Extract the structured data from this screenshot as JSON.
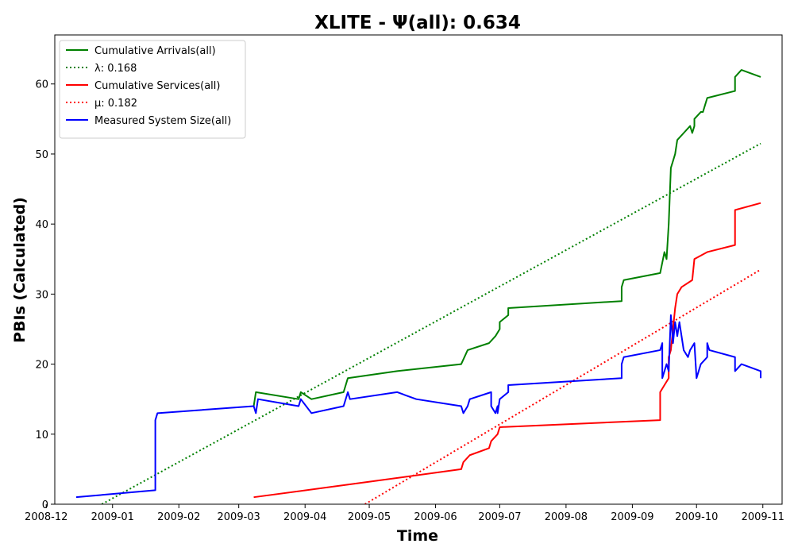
{
  "chart_data": {
    "type": "line",
    "title": "XLITE -  Ψ(all): 0.634",
    "xlabel": "Time",
    "ylabel": "PBIs (Calculated)",
    "xlim": [
      "2008-12-05",
      "2009-11-10"
    ],
    "ylim": [
      0,
      67
    ],
    "x_ticks": [
      {
        "date": "2008-12-01",
        "label": "2008-12"
      },
      {
        "date": "2009-01-01",
        "label": "2009-01"
      },
      {
        "date": "2009-02-01",
        "label": "2009-02"
      },
      {
        "date": "2009-03-01",
        "label": "2009-03"
      },
      {
        "date": "2009-04-01",
        "label": "2009-04"
      },
      {
        "date": "2009-05-01",
        "label": "2009-05"
      },
      {
        "date": "2009-06-01",
        "label": "2009-06"
      },
      {
        "date": "2009-07-01",
        "label": "2009-07"
      },
      {
        "date": "2009-08-01",
        "label": "2009-08"
      },
      {
        "date": "2009-09-01",
        "label": "2009-09"
      },
      {
        "date": "2009-10-01",
        "label": "2009-10"
      },
      {
        "date": "2009-11-01",
        "label": "2009-11"
      }
    ],
    "y_ticks": [
      0,
      10,
      20,
      30,
      40,
      50,
      60
    ],
    "legend_position": "upper-left",
    "series": [
      {
        "name": "Cumulative Arrivals(all)",
        "color": "#008000",
        "style": "solid",
        "points": [
          [
            "2009-03-08",
            14
          ],
          [
            "2009-03-09",
            16
          ],
          [
            "2009-03-29",
            15
          ],
          [
            "2009-03-30",
            16
          ],
          [
            "2009-04-04",
            15
          ],
          [
            "2009-04-19",
            16
          ],
          [
            "2009-04-21",
            18
          ],
          [
            "2009-05-14",
            19
          ],
          [
            "2009-06-13",
            20
          ],
          [
            "2009-06-16",
            22
          ],
          [
            "2009-06-26",
            23
          ],
          [
            "2009-06-29",
            24
          ],
          [
            "2009-07-01",
            25
          ],
          [
            "2009-07-01",
            26
          ],
          [
            "2009-07-05",
            27
          ],
          [
            "2009-07-05",
            28
          ],
          [
            "2009-08-27",
            29
          ],
          [
            "2009-08-27",
            31
          ],
          [
            "2009-08-28",
            32
          ],
          [
            "2009-09-14",
            33
          ],
          [
            "2009-09-16",
            36
          ],
          [
            "2009-09-17",
            35
          ],
          [
            "2009-09-18",
            40
          ],
          [
            "2009-09-19",
            48
          ],
          [
            "2009-09-20",
            49
          ],
          [
            "2009-09-21",
            50
          ],
          [
            "2009-09-22",
            52
          ],
          [
            "2009-09-25",
            53
          ],
          [
            "2009-09-28",
            54
          ],
          [
            "2009-09-29",
            53
          ],
          [
            "2009-09-30",
            54
          ],
          [
            "2009-09-30",
            55
          ],
          [
            "2009-10-03",
            56
          ],
          [
            "2009-10-04",
            56
          ],
          [
            "2009-10-05",
            57
          ],
          [
            "2009-10-06",
            58
          ],
          [
            "2009-10-19",
            59
          ],
          [
            "2009-10-19",
            61
          ],
          [
            "2009-10-22",
            62
          ],
          [
            "2009-10-31",
            61
          ]
        ]
      },
      {
        "name": "λ: 0.168",
        "color": "#008000",
        "style": "dotted",
        "points": [
          [
            "2008-12-27",
            0
          ],
          [
            "2009-10-31",
            51.5
          ]
        ]
      },
      {
        "name": "Cumulative Services(all)",
        "color": "#ff0000",
        "style": "solid",
        "points": [
          [
            "2009-03-08",
            1
          ],
          [
            "2009-04-26",
            3
          ],
          [
            "2009-06-13",
            5
          ],
          [
            "2009-06-14",
            6
          ],
          [
            "2009-06-17",
            7
          ],
          [
            "2009-06-26",
            8
          ],
          [
            "2009-06-27",
            9
          ],
          [
            "2009-06-30",
            10
          ],
          [
            "2009-07-01",
            11
          ],
          [
            "2009-09-14",
            12
          ],
          [
            "2009-09-14",
            16
          ],
          [
            "2009-09-16",
            17
          ],
          [
            "2009-09-18",
            18
          ],
          [
            "2009-09-18",
            21
          ],
          [
            "2009-09-19",
            22
          ],
          [
            "2009-09-20",
            25
          ],
          [
            "2009-09-21",
            28
          ],
          [
            "2009-09-22",
            30
          ],
          [
            "2009-09-24",
            31
          ],
          [
            "2009-09-29",
            32
          ],
          [
            "2009-09-30",
            35
          ],
          [
            "2009-10-06",
            36
          ],
          [
            "2009-10-19",
            37
          ],
          [
            "2009-10-19",
            42
          ],
          [
            "2009-10-31",
            43
          ]
        ]
      },
      {
        "name": "μ: 0.182",
        "color": "#ff0000",
        "style": "dotted",
        "points": [
          [
            "2009-04-29",
            0
          ],
          [
            "2009-10-31",
            33.5
          ]
        ]
      },
      {
        "name": "Measured System Size(all)",
        "color": "#0000ff",
        "style": "solid",
        "points": [
          [
            "2008-12-15",
            1
          ],
          [
            "2009-01-21",
            2
          ],
          [
            "2009-01-21",
            12
          ],
          [
            "2009-01-22",
            13
          ],
          [
            "2009-03-08",
            14
          ],
          [
            "2009-03-09",
            13
          ],
          [
            "2009-03-10",
            15
          ],
          [
            "2009-03-29",
            14
          ],
          [
            "2009-03-30",
            15
          ],
          [
            "2009-04-04",
            13
          ],
          [
            "2009-04-19",
            14
          ],
          [
            "2009-04-21",
            16
          ],
          [
            "2009-04-22",
            15
          ],
          [
            "2009-05-14",
            16
          ],
          [
            "2009-05-23",
            15
          ],
          [
            "2009-06-13",
            14
          ],
          [
            "2009-06-14",
            13
          ],
          [
            "2009-06-16",
            14
          ],
          [
            "2009-06-17",
            15
          ],
          [
            "2009-06-27",
            16
          ],
          [
            "2009-06-27",
            14
          ],
          [
            "2009-06-29",
            13
          ],
          [
            "2009-06-30",
            14
          ],
          [
            "2009-06-30",
            13
          ],
          [
            "2009-07-01",
            15
          ],
          [
            "2009-07-05",
            16
          ],
          [
            "2009-07-05",
            17
          ],
          [
            "2009-08-27",
            18
          ],
          [
            "2009-08-27",
            20
          ],
          [
            "2009-08-28",
            21
          ],
          [
            "2009-09-14",
            22
          ],
          [
            "2009-09-15",
            23
          ],
          [
            "2009-09-15",
            18
          ],
          [
            "2009-09-16",
            19
          ],
          [
            "2009-09-17",
            20
          ],
          [
            "2009-09-18",
            19
          ],
          [
            "2009-09-19",
            27
          ],
          [
            "2009-09-20",
            23
          ],
          [
            "2009-09-21",
            26
          ],
          [
            "2009-09-22",
            24
          ],
          [
            "2009-09-23",
            26
          ],
          [
            "2009-09-24",
            24
          ],
          [
            "2009-09-25",
            22
          ],
          [
            "2009-09-27",
            21
          ],
          [
            "2009-09-28",
            22
          ],
          [
            "2009-09-30",
            23
          ],
          [
            "2009-10-01",
            18
          ],
          [
            "2009-10-02",
            19
          ],
          [
            "2009-10-03",
            20
          ],
          [
            "2009-10-06",
            21
          ],
          [
            "2009-10-06",
            23
          ],
          [
            "2009-10-07",
            22
          ],
          [
            "2009-10-19",
            21
          ],
          [
            "2009-10-19",
            19
          ],
          [
            "2009-10-22",
            20
          ],
          [
            "2009-10-31",
            19
          ],
          [
            "2009-10-31",
            18
          ]
        ]
      }
    ]
  }
}
